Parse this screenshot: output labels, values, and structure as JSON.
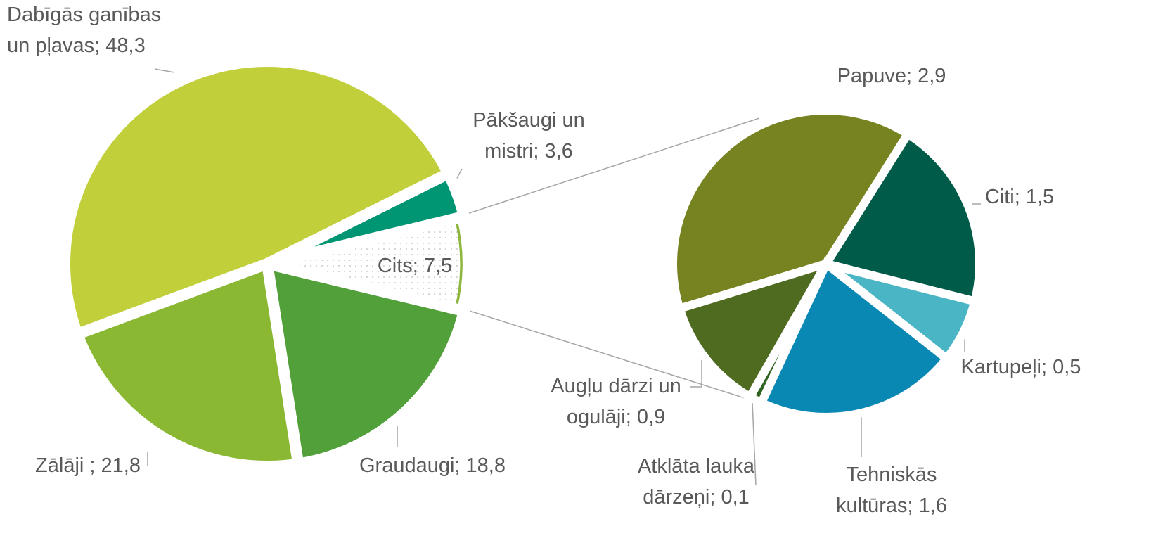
{
  "chart_data": [
    {
      "type": "pie",
      "values": [
        7.5,
        18.8,
        21.8,
        48.3,
        3.6
      ],
      "value_labels": [
        "Cits; 7,5",
        "Graudaugi; 18,8",
        "Zālāji ; 21,8",
        "Dabīgās ganības un pļavas; 48,3",
        "Pākšaugi un mistri; 3,6"
      ],
      "colors": [
        "#8db63c",
        "#52a03a",
        "#8ab833",
        "#c1d03a",
        "#009673"
      ],
      "split_index": 0
    },
    {
      "type": "pie",
      "values": [
        2.9,
        1.5,
        0.5,
        1.6,
        0.1,
        0.9
      ],
      "value_labels": [
        "Papuve; 2,9",
        "Citi; 1,5",
        "Kartupeļi; 0,5",
        "Tehniskās kultūras; 1,6",
        "Atklāta lauka dārzeņi; 0,1",
        "Augļu dārzi un ogulāji; 0,9"
      ],
      "colors": [
        "#778220",
        "#005c48",
        "#4ab5c4",
        "#0a88b4",
        "#2f6320",
        "#4e6b1f"
      ]
    }
  ]
}
